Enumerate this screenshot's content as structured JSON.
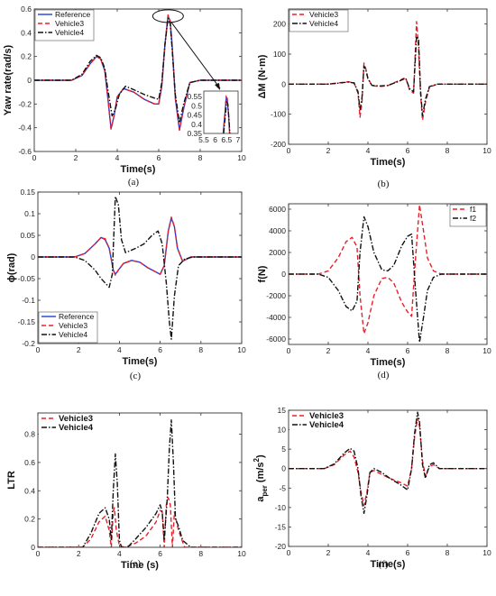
{
  "chart_data": [
    {
      "type": "line",
      "panel_label": "(a)",
      "xlabel": "Time(s)",
      "ylabel": "Yaw rate(rad/s)",
      "xlim": [
        0,
        10
      ],
      "ylim": [
        -0.6,
        0.6
      ],
      "xticks": [
        "0",
        "2",
        "4",
        "6",
        "8",
        "10"
      ],
      "yticks": [
        "-0.6",
        "-0.4",
        "-0.2",
        "0",
        "0.2",
        "0.4",
        "0.6"
      ],
      "legend_placement": "top-left",
      "series": [
        {
          "name": "Reference",
          "color": "#1f3fd8",
          "dash": "solid",
          "x": [
            0,
            1.8,
            2.3,
            2.7,
            3.0,
            3.2,
            3.4,
            3.55,
            3.7,
            3.85,
            4.0,
            4.3,
            4.8,
            5.3,
            5.8,
            6.0,
            6.15,
            6.3,
            6.45,
            6.55,
            6.65,
            6.8,
            7.0,
            7.2,
            7.5,
            8.0,
            10
          ],
          "y": [
            0,
            0,
            0.04,
            0.14,
            0.2,
            0.18,
            0.08,
            -0.15,
            -0.41,
            -0.3,
            -0.14,
            -0.07,
            -0.1,
            -0.16,
            -0.2,
            -0.2,
            -0.05,
            0.3,
            0.54,
            0.5,
            0.28,
            -0.15,
            -0.42,
            -0.24,
            -0.02,
            0,
            0
          ]
        },
        {
          "name": "Vehicle3",
          "color": "#e8202a",
          "dash": "dashed",
          "x": [
            0,
            1.8,
            2.3,
            2.7,
            3.0,
            3.2,
            3.4,
            3.55,
            3.7,
            3.85,
            4.0,
            4.3,
            4.8,
            5.3,
            5.8,
            6.0,
            6.15,
            6.3,
            6.45,
            6.55,
            6.65,
            6.8,
            7.0,
            7.2,
            7.5,
            8.0,
            10
          ],
          "y": [
            0,
            0,
            0.04,
            0.14,
            0.2,
            0.18,
            0.08,
            -0.15,
            -0.41,
            -0.3,
            -0.14,
            -0.07,
            -0.1,
            -0.16,
            -0.2,
            -0.2,
            -0.05,
            0.3,
            0.55,
            0.5,
            0.28,
            -0.15,
            -0.42,
            -0.24,
            -0.02,
            0,
            0
          ]
        },
        {
          "name": "Vehicle4",
          "color": "#111111",
          "dash": "dashdot",
          "x": [
            0,
            1.8,
            2.3,
            2.7,
            3.0,
            3.2,
            3.4,
            3.55,
            3.75,
            3.9,
            4.1,
            4.4,
            4.8,
            5.3,
            5.8,
            6.0,
            6.15,
            6.3,
            6.45,
            6.55,
            6.65,
            6.8,
            7.0,
            7.2,
            7.5,
            8.0,
            10
          ],
          "y": [
            0,
            0,
            0.05,
            0.16,
            0.21,
            0.19,
            0.1,
            -0.08,
            -0.3,
            -0.25,
            -0.12,
            -0.05,
            -0.08,
            -0.12,
            -0.15,
            -0.16,
            -0.02,
            0.3,
            0.52,
            0.48,
            0.25,
            -0.12,
            -0.36,
            -0.2,
            -0.02,
            0,
            0
          ]
        }
      ],
      "inset": {
        "xlim": [
          5.5,
          7
        ],
        "ylim": [
          0.35,
          0.58
        ],
        "xticks": [
          "5.5",
          "6",
          "6.5",
          "7"
        ],
        "yticks": [
          "0.35",
          "0.4",
          "0.45",
          "0.5",
          "0.55"
        ],
        "series": [
          {
            "name": "Reference",
            "x": [
              6.35,
              6.42,
              6.48,
              6.53,
              6.58,
              6.63
            ],
            "y": [
              0.35,
              0.45,
              0.54,
              0.53,
              0.45,
              0.35
            ]
          },
          {
            "name": "Vehicle3",
            "x": [
              6.35,
              6.42,
              6.48,
              6.53,
              6.58,
              6.63
            ],
            "y": [
              0.35,
              0.46,
              0.55,
              0.54,
              0.46,
              0.35
            ]
          },
          {
            "name": "Vehicle4",
            "x": [
              6.37,
              6.44,
              6.5,
              6.55,
              6.6,
              6.64
            ],
            "y": [
              0.35,
              0.44,
              0.52,
              0.51,
              0.43,
              0.35
            ]
          }
        ]
      }
    },
    {
      "type": "line",
      "panel_label": "(b)",
      "xlabel": "Time(s)",
      "ylabel": "ΔM (N·m)",
      "xlim": [
        0,
        10
      ],
      "ylim": [
        -200,
        250
      ],
      "xticks": [
        "0",
        "2",
        "4",
        "6",
        "8",
        "10"
      ],
      "yticks": [
        "-200",
        "-100",
        "0",
        "100",
        "200"
      ],
      "legend_placement": "top-left",
      "series": [
        {
          "name": "Vehicle3",
          "color": "#e8202a",
          "dash": "dashed",
          "x": [
            0,
            2.0,
            2.6,
            3.0,
            3.3,
            3.5,
            3.6,
            3.7,
            3.8,
            3.9,
            4.0,
            4.2,
            4.6,
            5.0,
            5.5,
            5.9,
            6.1,
            6.3,
            6.45,
            6.55,
            6.65,
            6.75,
            6.9,
            7.1,
            7.5,
            10
          ],
          "y": [
            0,
            0,
            5,
            8,
            5,
            -30,
            -110,
            -60,
            70,
            50,
            20,
            -5,
            -8,
            -5,
            10,
            22,
            -20,
            -30,
            208,
            120,
            -30,
            -120,
            -60,
            -10,
            0,
            0
          ]
        },
        {
          "name": "Vehicle4",
          "color": "#111111",
          "dash": "dashdot",
          "x": [
            0,
            2.0,
            2.6,
            3.0,
            3.3,
            3.5,
            3.6,
            3.7,
            3.8,
            3.9,
            4.0,
            4.2,
            4.6,
            5.0,
            5.5,
            5.9,
            6.1,
            6.3,
            6.45,
            6.55,
            6.65,
            6.75,
            6.9,
            7.1,
            7.5,
            10
          ],
          "y": [
            0,
            0,
            4,
            7,
            4,
            -25,
            -85,
            -45,
            60,
            45,
            18,
            -4,
            -6,
            -4,
            8,
            20,
            -15,
            -25,
            160,
            150,
            -20,
            -105,
            -50,
            -8,
            0,
            0
          ]
        }
      ]
    },
    {
      "type": "line",
      "panel_label": "(c)",
      "xlabel": "Time(s)",
      "ylabel": "ϕ(rad)",
      "xlim": [
        0,
        10
      ],
      "ylim": [
        -0.2,
        0.15
      ],
      "xticks": [
        "0",
        "2",
        "4",
        "6",
        "8",
        "10"
      ],
      "yticks": [
        "-0.2",
        "-0.15",
        "-0.1",
        "-0.05",
        "0",
        "0.05",
        "0.1",
        "0.15"
      ],
      "legend_placement": "bottom-left",
      "series": [
        {
          "name": "Reference",
          "color": "#1f3fd8",
          "dash": "solid",
          "x": [
            0,
            1.8,
            2.3,
            2.8,
            3.1,
            3.3,
            3.5,
            3.7,
            3.8,
            3.95,
            4.2,
            4.6,
            5.0,
            5.4,
            5.8,
            6.0,
            6.2,
            6.4,
            6.55,
            6.7,
            6.85,
            7.1,
            7.5,
            8,
            10
          ],
          "y": [
            0,
            0,
            0.008,
            0.03,
            0.045,
            0.04,
            0.02,
            -0.03,
            -0.04,
            -0.03,
            -0.015,
            -0.008,
            -0.012,
            -0.025,
            -0.035,
            -0.04,
            -0.02,
            0.06,
            0.09,
            0.07,
            0.02,
            -0.01,
            0,
            0,
            0
          ]
        },
        {
          "name": "Vehicle3",
          "color": "#e8202a",
          "dash": "dashed",
          "x": [
            0,
            1.8,
            2.3,
            2.8,
            3.1,
            3.3,
            3.5,
            3.7,
            3.8,
            3.95,
            4.2,
            4.6,
            5.0,
            5.4,
            5.8,
            6.0,
            6.2,
            6.4,
            6.55,
            6.7,
            6.85,
            7.1,
            7.5,
            8,
            10
          ],
          "y": [
            0,
            0,
            0.008,
            0.03,
            0.045,
            0.042,
            0.02,
            -0.03,
            -0.042,
            -0.03,
            -0.015,
            -0.008,
            -0.012,
            -0.025,
            -0.035,
            -0.04,
            -0.02,
            0.06,
            0.092,
            0.07,
            0.02,
            -0.01,
            0,
            0,
            0
          ]
        },
        {
          "name": "Vehicle4",
          "color": "#111111",
          "dash": "dashdot",
          "x": [
            0,
            1.8,
            2.3,
            2.8,
            3.1,
            3.3,
            3.5,
            3.65,
            3.8,
            3.95,
            4.1,
            4.3,
            4.8,
            5.2,
            5.6,
            5.9,
            6.1,
            6.3,
            6.45,
            6.55,
            6.7,
            6.9,
            7.2,
            7.6,
            8,
            10
          ],
          "y": [
            0,
            0,
            -0.008,
            -0.03,
            -0.05,
            -0.06,
            -0.07,
            -0.04,
            0.14,
            0.12,
            0.04,
            0.01,
            0.02,
            0.03,
            0.05,
            0.06,
            0.03,
            -0.06,
            -0.15,
            -0.19,
            -0.09,
            -0.02,
            -0.005,
            0,
            0,
            0
          ]
        }
      ]
    },
    {
      "type": "line",
      "panel_label": "(d)",
      "xlabel": "Time(s)",
      "ylabel": "f(N)",
      "xlim": [
        0,
        10
      ],
      "ylim": [
        -6500,
        6500
      ],
      "xticks": [
        "0",
        "2",
        "4",
        "6",
        "8",
        "10"
      ],
      "yticks": [
        "-6000",
        "-4000",
        "-2000",
        "0",
        "2000",
        "4000",
        "6000"
      ],
      "legend_placement": "top-right",
      "series": [
        {
          "name": "f1",
          "color": "#e8202a",
          "dash": "dashed",
          "x": [
            0,
            1.5,
            2.0,
            2.5,
            2.9,
            3.2,
            3.45,
            3.6,
            3.8,
            4.0,
            4.3,
            4.7,
            5.0,
            5.3,
            5.7,
            6.0,
            6.2,
            6.4,
            6.6,
            6.8,
            7.0,
            7.3,
            7.7,
            8.2,
            10
          ],
          "y": [
            0,
            0,
            300,
            1500,
            3000,
            3400,
            2500,
            -2000,
            -5500,
            -4500,
            -2000,
            -400,
            -300,
            -800,
            -2600,
            -3500,
            -3900,
            1500,
            6400,
            4000,
            1500,
            300,
            0,
            0,
            0
          ]
        },
        {
          "name": "f2",
          "color": "#111111",
          "dash": "dashdot",
          "x": [
            0,
            1.5,
            2.0,
            2.5,
            2.9,
            3.2,
            3.45,
            3.6,
            3.8,
            4.0,
            4.3,
            4.7,
            5.0,
            5.3,
            5.7,
            6.0,
            6.2,
            6.4,
            6.6,
            6.8,
            7.0,
            7.3,
            7.7,
            8.2,
            10
          ],
          "y": [
            0,
            0,
            -300,
            -1500,
            -3000,
            -3400,
            -2500,
            2000,
            5300,
            4400,
            2000,
            400,
            300,
            800,
            2600,
            3500,
            3700,
            -1500,
            -6300,
            -4000,
            -1500,
            -300,
            0,
            0,
            0
          ]
        }
      ]
    },
    {
      "type": "line",
      "panel_label": "(e)",
      "xlabel": "Time (s)",
      "ylabel": "LTR",
      "xlim": [
        0,
        10
      ],
      "ylim": [
        0,
        0.95
      ],
      "xticks": [
        "0",
        "2",
        "4",
        "6",
        "8",
        "10"
      ],
      "yticks": [
        "0",
        "0.2",
        "0.4",
        "0.6",
        "0.8"
      ],
      "legend_placement": "top-left",
      "series": [
        {
          "name": "Vehicle3",
          "color": "#e8202a",
          "dash": "dashed",
          "x": [
            0,
            2.2,
            2.6,
            3.0,
            3.3,
            3.5,
            3.6,
            3.7,
            3.75,
            3.85,
            4.0,
            4.3,
            4.8,
            5.3,
            5.8,
            6.0,
            6.1,
            6.2,
            6.3,
            6.4,
            6.5,
            6.6,
            6.7,
            6.9,
            7.2,
            10
          ],
          "y": [
            0,
            0,
            0.06,
            0.18,
            0.22,
            0.12,
            0.0,
            0.25,
            0.28,
            0.12,
            0.01,
            0.0,
            0.03,
            0.08,
            0.18,
            0.26,
            0.25,
            0.0,
            0.3,
            0.35,
            0.3,
            0.0,
            0.25,
            0.12,
            0.0,
            0
          ]
        },
        {
          "name": "Vehicle4",
          "color": "#111111",
          "dash": "dashdot",
          "x": [
            0,
            2.2,
            2.6,
            3.0,
            3.3,
            3.5,
            3.6,
            3.7,
            3.8,
            3.9,
            4.0,
            4.1,
            4.4,
            4.8,
            5.3,
            5.8,
            6.0,
            6.1,
            6.2,
            6.35,
            6.45,
            6.55,
            6.65,
            6.75,
            6.9,
            7.1,
            7.5,
            10
          ],
          "y": [
            0,
            0,
            0.1,
            0.24,
            0.28,
            0.2,
            0.05,
            0.4,
            0.66,
            0.45,
            0.05,
            0.0,
            0.0,
            0.06,
            0.14,
            0.24,
            0.3,
            0.25,
            0.05,
            0.35,
            0.7,
            0.9,
            0.6,
            0.2,
            0.15,
            0.05,
            0.0,
            0
          ]
        }
      ]
    },
    {
      "type": "line",
      "panel_label": "(f)",
      "xlabel": "Time(s)",
      "ylabel": "a_per (m/s²)",
      "ylabel_parts": {
        "main": "a",
        "sub": "per",
        "unit": "(m/s",
        "sup": "2",
        "close": ")"
      },
      "xlim": [
        0,
        10
      ],
      "ylim": [
        -20,
        15
      ],
      "xticks": [
        "0",
        "2",
        "4",
        "6",
        "8",
        "10"
      ],
      "yticks": [
        "-20",
        "-15",
        "-10",
        "-5",
        "0",
        "5",
        "10",
        "15"
      ],
      "legend_placement": "top-left",
      "series": [
        {
          "name": "Vehicle3",
          "color": "#e8202a",
          "dash": "dashed",
          "x": [
            0,
            1.8,
            2.3,
            2.8,
            3.1,
            3.3,
            3.5,
            3.65,
            3.8,
            3.95,
            4.1,
            4.3,
            4.7,
            5.1,
            5.6,
            6.0,
            6.2,
            6.35,
            6.5,
            6.6,
            6.75,
            6.9,
            7.1,
            7.3,
            7.6,
            8,
            10
          ],
          "y": [
            0,
            0,
            1,
            3.5,
            4.5,
            3,
            -1,
            -6,
            -9.5,
            -6,
            -1,
            -0.5,
            -1.5,
            -2.5,
            -3.5,
            -4.5,
            0,
            8,
            13,
            11,
            2,
            -2,
            0.5,
            1,
            0,
            0,
            0
          ]
        },
        {
          "name": "Vehicle4",
          "color": "#111111",
          "dash": "dashdot",
          "x": [
            0,
            1.8,
            2.3,
            2.8,
            3.1,
            3.3,
            3.5,
            3.65,
            3.8,
            3.95,
            4.1,
            4.3,
            4.7,
            5.1,
            5.6,
            6.0,
            6.2,
            6.35,
            6.5,
            6.6,
            6.75,
            6.9,
            7.1,
            7.3,
            7.6,
            8,
            10
          ],
          "y": [
            0,
            0,
            1.2,
            4,
            5.2,
            4.5,
            0,
            -7,
            -11.5,
            -7,
            -1,
            0,
            -1,
            -2.5,
            -4,
            -5.5,
            0,
            9,
            14.5,
            12,
            1,
            -2.5,
            1,
            1.5,
            0,
            0,
            0
          ]
        }
      ]
    }
  ]
}
